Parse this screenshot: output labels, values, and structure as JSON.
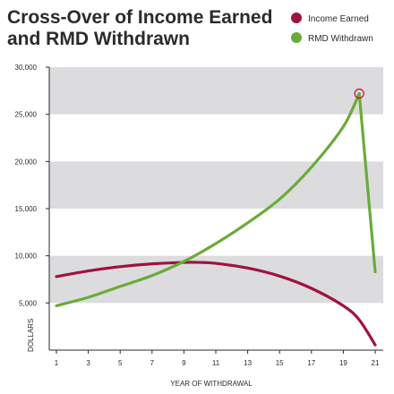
{
  "chart_data": {
    "type": "line",
    "title": [
      "Cross-Over of Income Earned",
      "and RMD Withdrawn"
    ],
    "xlabel": "YEAR OF WITHDRAWAL",
    "ylabel": "DOLLARS",
    "x_ticks": [
      "1",
      "3",
      "5",
      "7",
      "9",
      "11",
      "13",
      "15",
      "17",
      "19",
      "21"
    ],
    "y_ticks": [
      "5,000",
      "10,000",
      "15,000",
      "20,000",
      "25,000",
      "30,000"
    ],
    "xlim": [
      1,
      21
    ],
    "ylim": [
      0,
      30000
    ],
    "grid": "alternating horizontal bands",
    "legend_position": "top-right",
    "colors": {
      "income": "#a0123f",
      "rmd": "#6aab3a",
      "band": "#dcdcde",
      "marker": "#c8102e"
    },
    "series": [
      {
        "name": "Income Earned",
        "color": "#a0123f",
        "x": [
          1,
          3,
          5,
          7,
          9,
          10,
          11,
          13,
          15,
          17,
          19,
          20,
          21
        ],
        "y": [
          7800,
          8400,
          8850,
          9150,
          9300,
          9300,
          9200,
          8700,
          7850,
          6550,
          4700,
          3200,
          550
        ]
      },
      {
        "name": "RMD Withdrawn",
        "color": "#6aab3a",
        "x": [
          1,
          3,
          5,
          7,
          9,
          11,
          13,
          15,
          17,
          19,
          20,
          21
        ],
        "y": [
          4700,
          5600,
          6750,
          7900,
          9400,
          11300,
          13500,
          16000,
          19400,
          23700,
          27200,
          8300
        ]
      }
    ],
    "annotations": [
      {
        "type": "circle-marker",
        "series": "RMD Withdrawn",
        "x": 20,
        "y": 27200
      }
    ]
  }
}
